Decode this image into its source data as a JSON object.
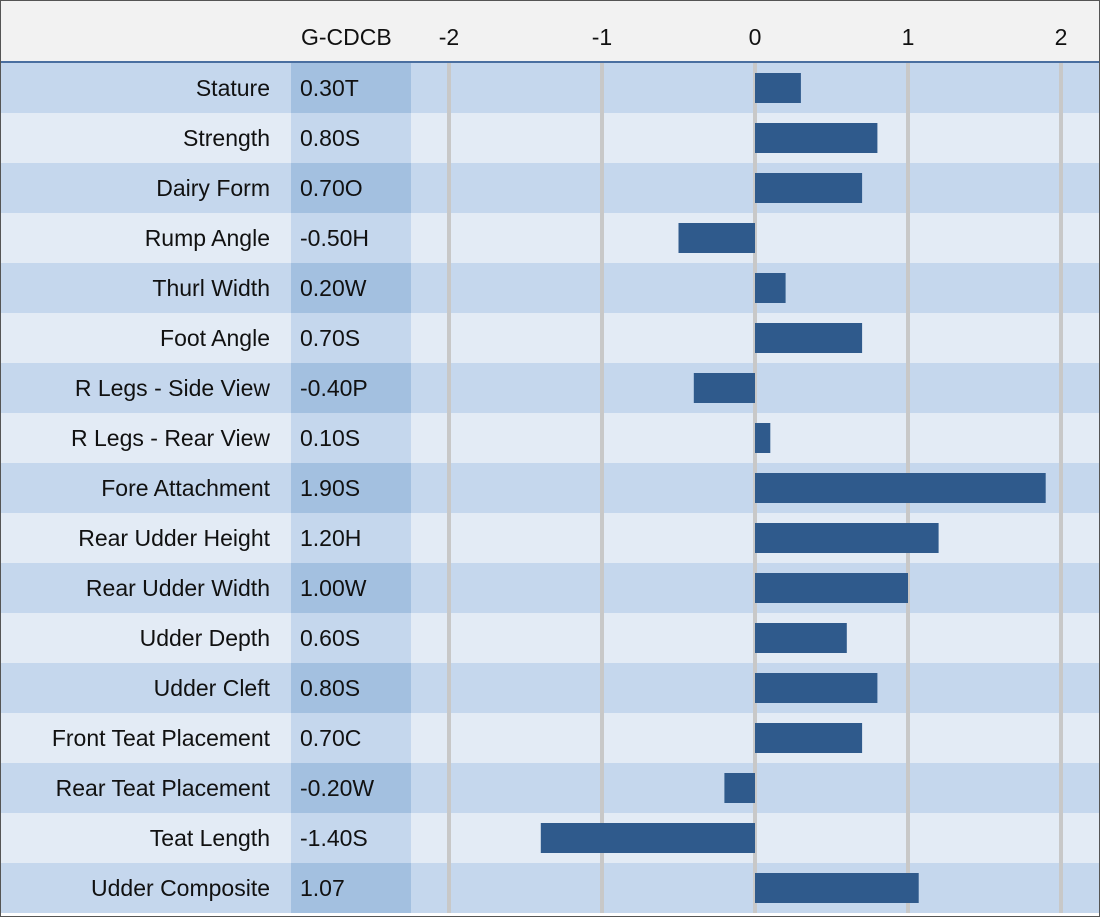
{
  "colors": {
    "bar": "#2f5a8c",
    "row_dark": "#c5d7ed",
    "row_light": "#e3ebf5",
    "score_dark": "#a3c0e0",
    "score_light": "#c5d7ed",
    "gridline": "#c8c8c8",
    "header_bg": "#f2f2f2",
    "header_rule": "#4a6fa0"
  },
  "chart_data": {
    "type": "bar",
    "orientation": "horizontal",
    "column_header": "G-CDCB",
    "xlim": [
      -2,
      2
    ],
    "ticks": [
      {
        "value": -2,
        "label": "-2"
      },
      {
        "value": -1,
        "label": "-1"
      },
      {
        "value": 0,
        "label": "0"
      },
      {
        "value": 1,
        "label": "1"
      },
      {
        "value": 2,
        "label": "2"
      }
    ],
    "grid": true,
    "categories": [
      {
        "label": "Stature",
        "score": "0.30T",
        "value": 0.3
      },
      {
        "label": "Strength",
        "score": "0.80S",
        "value": 0.8
      },
      {
        "label": "Dairy Form",
        "score": "0.70O",
        "value": 0.7
      },
      {
        "label": "Rump Angle",
        "score": "-0.50H",
        "value": -0.5
      },
      {
        "label": "Thurl Width",
        "score": "0.20W",
        "value": 0.2
      },
      {
        "label": "Foot Angle",
        "score": "0.70S",
        "value": 0.7
      },
      {
        "label": "R Legs - Side View",
        "score": "-0.40P",
        "value": -0.4
      },
      {
        "label": "R Legs - Rear View",
        "score": "0.10S",
        "value": 0.1
      },
      {
        "label": "Fore Attachment",
        "score": "1.90S",
        "value": 1.9
      },
      {
        "label": "Rear Udder Height",
        "score": "1.20H",
        "value": 1.2
      },
      {
        "label": "Rear Udder Width",
        "score": "1.00W",
        "value": 1.0
      },
      {
        "label": "Udder Depth",
        "score": "0.60S",
        "value": 0.6
      },
      {
        "label": "Udder Cleft",
        "score": "0.80S",
        "value": 0.8
      },
      {
        "label": "Front Teat Placement",
        "score": "0.70C",
        "value": 0.7
      },
      {
        "label": "Rear Teat Placement",
        "score": "-0.20W",
        "value": -0.2
      },
      {
        "label": "Teat Length",
        "score": "-1.40S",
        "value": -1.4
      },
      {
        "label": "Udder Composite",
        "score": "1.07",
        "value": 1.07
      }
    ]
  }
}
